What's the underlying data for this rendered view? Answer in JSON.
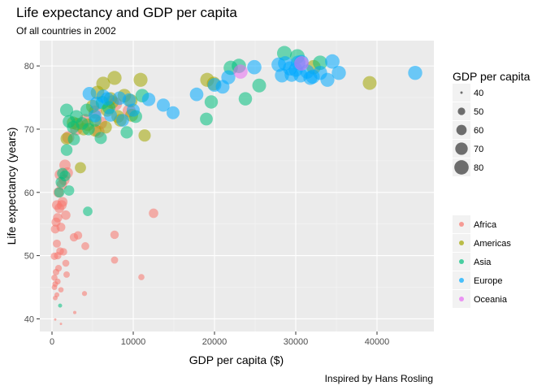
{
  "chart_data": {
    "type": "scatter",
    "title": "Life expectancy and GDP per capita",
    "subtitle": "Of all countries in 2002",
    "xlabel": "GDP per capita ($)",
    "ylabel": "Life expectancy (years)",
    "caption": "Inspired by Hans Rosling",
    "xlim": [
      -1500,
      47000
    ],
    "ylim": [
      38,
      84
    ],
    "x_ticks": [
      0,
      10000,
      20000,
      30000,
      40000
    ],
    "y_ticks": [
      40,
      50,
      60,
      70,
      80
    ],
    "grid": true,
    "size_legend": {
      "title": "GDP per capita",
      "values": [
        40,
        50,
        60,
        70,
        80
      ]
    },
    "color_legend_placement": "right",
    "size_legend_placement": "top-right",
    "series": [
      {
        "name": "Africa",
        "color": "#F8766D",
        "points": [
          [
            5288,
            72.7
          ],
          [
            4100,
            71.4
          ],
          [
            6000,
            71.0
          ],
          [
            5700,
            69.6
          ],
          [
            7800,
            74.0
          ],
          [
            9500,
            72.9
          ],
          [
            3000,
            70.0
          ],
          [
            2000,
            68.7
          ],
          [
            1600,
            64.3
          ],
          [
            1900,
            63.1
          ],
          [
            1000,
            62.8
          ],
          [
            1500,
            62.0
          ],
          [
            1200,
            61.2
          ],
          [
            800,
            60.0
          ],
          [
            1300,
            58.5
          ],
          [
            600,
            58.0
          ],
          [
            900,
            57.5
          ],
          [
            1700,
            56.4
          ],
          [
            700,
            56.0
          ],
          [
            500,
            55.3
          ],
          [
            1100,
            54.5
          ],
          [
            400,
            54.2
          ],
          [
            3200,
            53.2
          ],
          [
            2700,
            52.9
          ],
          [
            7700,
            53.3
          ],
          [
            600,
            51.9
          ],
          [
            4100,
            51.5
          ],
          [
            1000,
            50.7
          ],
          [
            1400,
            50.6
          ],
          [
            700,
            50.0
          ],
          [
            300,
            49.9
          ],
          [
            1700,
            48.8
          ],
          [
            7700,
            49.3
          ],
          [
            800,
            48.0
          ],
          [
            500,
            47.4
          ],
          [
            1800,
            47.0
          ],
          [
            300,
            46.5
          ],
          [
            11000,
            46.6
          ],
          [
            700,
            45.9
          ],
          [
            400,
            45.5
          ],
          [
            300,
            45.0
          ],
          [
            1100,
            44.6
          ],
          [
            600,
            43.8
          ],
          [
            4000,
            44.0
          ],
          [
            400,
            43.3
          ],
          [
            2800,
            41.0
          ],
          [
            400,
            39.9
          ],
          [
            1100,
            39.2
          ],
          [
            12500,
            56.7
          ],
          [
            1200,
            58.0
          ]
        ]
      },
      {
        "name": "Americas",
        "color": "#A3A500",
        "points": [
          [
            7700,
            78.1
          ],
          [
            10900,
            77.8
          ],
          [
            6300,
            77.2
          ],
          [
            5600,
            75.8
          ],
          [
            8900,
            75.3
          ],
          [
            7400,
            74.3
          ],
          [
            5000,
            73.6
          ],
          [
            6800,
            73.0
          ],
          [
            8100,
            72.0
          ],
          [
            9800,
            72.2
          ],
          [
            4400,
            70.7
          ],
          [
            3900,
            70.0
          ],
          [
            5300,
            69.8
          ],
          [
            3100,
            70.8
          ],
          [
            2600,
            71.0
          ],
          [
            8400,
            71.4
          ],
          [
            6600,
            70.3
          ],
          [
            11400,
            69.0
          ],
          [
            1800,
            68.5
          ],
          [
            3500,
            63.9
          ],
          [
            9700,
            74.5
          ],
          [
            19900,
            77.2
          ],
          [
            19100,
            77.8
          ],
          [
            32200,
            79.8
          ],
          [
            39100,
            77.3
          ],
          [
            7200,
            74.8
          ]
        ]
      },
      {
        "name": "Asia",
        "color": "#00BF7D",
        "points": [
          [
            22000,
            79.7
          ],
          [
            23000,
            80.0
          ],
          [
            28600,
            82.0
          ],
          [
            30200,
            81.5
          ],
          [
            25500,
            76.9
          ],
          [
            19600,
            74.3
          ],
          [
            19000,
            71.6
          ],
          [
            23800,
            74.8
          ],
          [
            11100,
            75.3
          ],
          [
            9200,
            69.5
          ],
          [
            7000,
            73.4
          ],
          [
            5300,
            71.4
          ],
          [
            4300,
            73.0
          ],
          [
            3000,
            72.0
          ],
          [
            2100,
            71.2
          ],
          [
            2600,
            70.3
          ],
          [
            4500,
            70.0
          ],
          [
            6000,
            68.6
          ],
          [
            2700,
            68.4
          ],
          [
            1800,
            66.7
          ],
          [
            1300,
            63.0
          ],
          [
            1100,
            61.6
          ],
          [
            900,
            60.0
          ],
          [
            2100,
            60.3
          ],
          [
            1600,
            62.6
          ],
          [
            4400,
            57.0
          ],
          [
            1000,
            42.1
          ],
          [
            1800,
            73.0
          ],
          [
            3700,
            70.9
          ],
          [
            6200,
            74.2
          ],
          [
            10300,
            72.0
          ],
          [
            33000,
            80.5
          ]
        ]
      },
      {
        "name": "Europe",
        "color": "#00A9FF",
        "points": [
          [
            27900,
            80.2
          ],
          [
            28700,
            80.4
          ],
          [
            29300,
            79.6
          ],
          [
            30000,
            79.4
          ],
          [
            30300,
            80.5
          ],
          [
            30700,
            80.6
          ],
          [
            31400,
            79.1
          ],
          [
            32100,
            78.3
          ],
          [
            29500,
            78.6
          ],
          [
            28300,
            78.5
          ],
          [
            33000,
            78.9
          ],
          [
            34500,
            80.7
          ],
          [
            33900,
            77.8
          ],
          [
            35300,
            78.9
          ],
          [
            44700,
            78.9
          ],
          [
            24900,
            79.8
          ],
          [
            21700,
            78.2
          ],
          [
            20000,
            77.0
          ],
          [
            17800,
            75.5
          ],
          [
            14900,
            72.6
          ],
          [
            13700,
            73.8
          ],
          [
            11900,
            74.7
          ],
          [
            10000,
            73.0
          ],
          [
            9500,
            74.6
          ],
          [
            8300,
            74.9
          ],
          [
            8700,
            71.4
          ],
          [
            6800,
            74.8
          ],
          [
            6300,
            75.2
          ],
          [
            5500,
            74.1
          ],
          [
            5300,
            72.1
          ],
          [
            4600,
            75.6
          ],
          [
            7200,
            72.2
          ],
          [
            21000,
            76.7
          ],
          [
            30600,
            78.5
          ],
          [
            31800,
            78.1
          ]
        ]
      },
      {
        "name": "Oceania",
        "color": "#E76BF3",
        "points": [
          [
            30700,
            80.4
          ],
          [
            23200,
            79.1
          ]
        ]
      }
    ]
  }
}
